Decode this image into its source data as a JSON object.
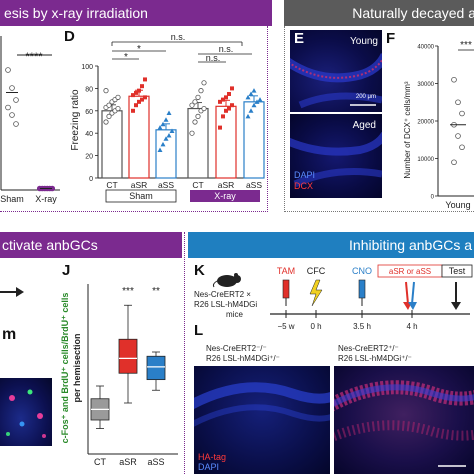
{
  "banners": {
    "top_left": "esis by x-ray irradiation",
    "top_right": "Naturally decayed a",
    "bottom_left": "ctivate anbGCs",
    "bottom_right": "Inhibiting anbGCs a"
  },
  "colors": {
    "purple": "#7b2a8f",
    "gray_banner": "#606060",
    "blue_banner": "#1f7fc0",
    "red_series": "#e0302a",
    "blue_series": "#2a7fc8"
  },
  "panel_letters": {
    "D": "D",
    "E": "E",
    "F": "F",
    "J": "J",
    "K": "K",
    "L": "L"
  },
  "panel_c": {
    "significance": "****",
    "ticks": [
      "Sham",
      "X-ray"
    ]
  },
  "panel_d": {
    "ylabel": "Freezing ratio",
    "sig_top": "n.s.",
    "sig_left": "*",
    "sig_left2": "*",
    "sig_right": "n.s.",
    "sig_right2": "n.s.",
    "group_sham": "Sham",
    "group_xray": "X-ray",
    "legend_symbols": [
      "circle",
      "square",
      "triangle"
    ]
  },
  "panel_e": {
    "young": "Young",
    "aged": "Aged",
    "scale": "200 μm",
    "dapi": "DAPI",
    "dcx": "DCX"
  },
  "panel_f": {
    "significance": "***",
    "ylabel": "Number of DCX⁺ cells/mm³",
    "tick_young": "Young"
  },
  "panel_j": {
    "ylabel_1": "c-Fos⁺ and BrdU⁺ cells/BrdU⁺ cells",
    "ylabel_2": "per hemisection",
    "sig_asr": "***",
    "sig_ass": "**"
  },
  "panel_i_partial": {
    "text": "m"
  },
  "panel_k": {
    "mouse_line_1": "Nes-CreERT2 ×",
    "mouse_line_2": "R26 LSL-hM4DGi",
    "mouse_line_3": "mice",
    "tam": "TAM",
    "cfc": "CFC",
    "cno": "CNO",
    "test_box": "aSR or aSS",
    "test": "Test",
    "t1": "−5 w",
    "t2": "0 h",
    "t3": "3.5 h",
    "t4": "4 h"
  },
  "panel_l": {
    "left_title_1": "Nes-CreERT2⁻/⁻",
    "left_title_2": "R26 LSL-hM4DGi⁺/⁻",
    "right_title_1": "Nes-CreERT2⁺/⁻",
    "right_title_2": "R26 LSL-hM4DGi⁺/⁻",
    "ha_tag": "HA-tag",
    "dapi": "DAPI"
  },
  "chart_data": [
    {
      "panel": "C",
      "type": "scatter",
      "categories": [
        "Sham",
        "X-ray"
      ],
      "ylim": [
        0,
        100
      ],
      "series": [
        {
          "values": [
            [
              0,
              80
            ],
            [
              0,
              68
            ],
            [
              0,
              60
            ],
            [
              0,
              55
            ],
            [
              0,
              50
            ],
            [
              0,
              44
            ],
            [
              1,
              1
            ],
            [
              1,
              1
            ],
            [
              1,
              1
            ],
            [
              1,
              1
            ],
            [
              1,
              1
            ],
            [
              1,
              1
            ]
          ]
        }
      ],
      "means": [
        65,
        1
      ]
    },
    {
      "panel": "D",
      "type": "bar",
      "categories": [
        "CT",
        "aSR",
        "aSS",
        "CT",
        "aSR",
        "aSS"
      ],
      "ylabel": "Freezing ratio",
      "ylim": [
        0,
        100
      ],
      "values": [
        60,
        73,
        43,
        62,
        64,
        68
      ],
      "points": [
        [
          50,
          55,
          58,
          60,
          62,
          63,
          65,
          68,
          70,
          72,
          78
        ],
        [
          60,
          65,
          68,
          70,
          72,
          74,
          76,
          78,
          82,
          88
        ],
        [
          25,
          30,
          35,
          38,
          42,
          45,
          48,
          52,
          58
        ],
        [
          40,
          50,
          55,
          60,
          62,
          65,
          68,
          72,
          78,
          85
        ],
        [
          45,
          55,
          60,
          62,
          65,
          68,
          70,
          72,
          75,
          80
        ],
        [
          55,
          60,
          65,
          68,
          70,
          72,
          75,
          78
        ]
      ]
    },
    {
      "panel": "F",
      "type": "scatter",
      "categories": [
        "Young"
      ],
      "ylabel": "Number of DCX⁺ cells/mm³",
      "ylim": [
        0,
        40000
      ],
      "yticks": [
        0,
        10000,
        20000,
        30000,
        40000
      ],
      "values": [
        31000,
        25000,
        22000,
        19000,
        16000,
        13000,
        9000
      ],
      "mean": 19000
    },
    {
      "panel": "J",
      "type": "box",
      "categories": [
        "CT",
        "aSR",
        "aSS"
      ],
      "ylim": [
        0,
        0.04
      ],
      "boxes": [
        {
          "min": 0.006,
          "q1": 0.008,
          "median": 0.0105,
          "q3": 0.013,
          "max": 0.016
        },
        {
          "min": 0.012,
          "q1": 0.019,
          "median": 0.0225,
          "q3": 0.027,
          "max": 0.035
        },
        {
          "min": 0.015,
          "q1": 0.0175,
          "median": 0.0205,
          "q3": 0.023,
          "max": 0.024
        }
      ]
    }
  ]
}
